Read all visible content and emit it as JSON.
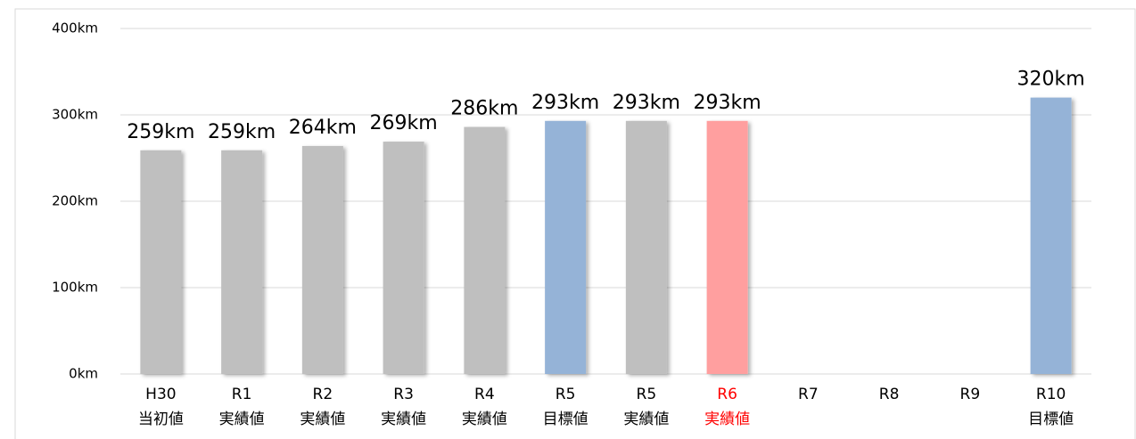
{
  "chart_data": {
    "type": "bar",
    "categories": [
      "H30",
      "R1",
      "R2",
      "R3",
      "R4",
      "R5",
      "R5",
      "R6",
      "R7",
      "R8",
      "R9",
      "R10"
    ],
    "category_sublabels": [
      "当初値",
      "実績値",
      "実績値",
      "実績値",
      "実績値",
      "目標値",
      "実績値",
      "実績値",
      null,
      null,
      null,
      "目標値"
    ],
    "category_label_colors": [
      "#000000",
      "#000000",
      "#000000",
      "#000000",
      "#000000",
      "#000000",
      "#000000",
      "#ff0000",
      "#000000",
      "#000000",
      "#000000",
      "#000000"
    ],
    "values": [
      259,
      259,
      264,
      269,
      286,
      293,
      293,
      293,
      null,
      null,
      null,
      320
    ],
    "value_labels": [
      "259km",
      "259km",
      "264km",
      "269km",
      "286km",
      "293km",
      "293km",
      "293km",
      null,
      null,
      null,
      "320km"
    ],
    "colors": [
      "#bfbfbf",
      "#bfbfbf",
      "#bfbfbf",
      "#bfbfbf",
      "#bfbfbf",
      "#95b3d7",
      "#bfbfbf",
      "#ff9f9f",
      null,
      null,
      null,
      "#95b3d7"
    ],
    "ylim": [
      0,
      400
    ],
    "yticks": [
      {
        "value": 0,
        "label": "0km"
      },
      {
        "value": 100,
        "label": "100km"
      },
      {
        "value": 200,
        "label": "200km"
      },
      {
        "value": 300,
        "label": "300km"
      },
      {
        "value": 400,
        "label": "400km"
      }
    ],
    "grid": true
  }
}
